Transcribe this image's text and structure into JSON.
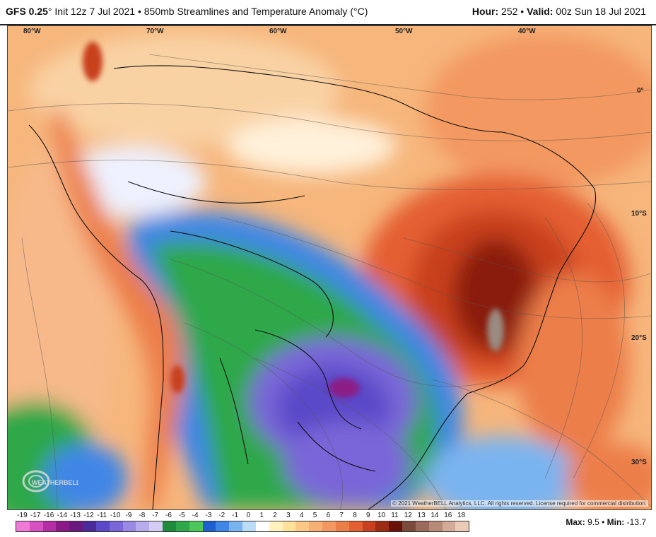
{
  "header": {
    "model": "GFS 0.25",
    "degree_mark": "°",
    "init": "Init 12z 7 Jul 2021",
    "bullet": "•",
    "product": "850mb Streamlines and Temperature Anomaly (°C)",
    "hour_label": "Hour:",
    "hour_value": "252",
    "valid_label": "Valid:",
    "valid_value": "00z Sun 18 Jul 2021"
  },
  "map": {
    "lon_labels": [
      "80°W",
      "70°W",
      "60°W",
      "50°W",
      "40°W"
    ],
    "lat_labels": [
      "0°",
      "10°S",
      "20°S",
      "30°S"
    ],
    "credit": "© 2021 WeatherBELL Analytics, LLC. All rights reserved. License required for commercial distribution.",
    "logo_text": "WEATHERBELL"
  },
  "colorbar": {
    "ticks": [
      "-19",
      "-17",
      "-16",
      "-14",
      "-13",
      "-12",
      "-11",
      "-10",
      "-9",
      "-8",
      "-7",
      "-6",
      "-5",
      "-4",
      "-3",
      "-2",
      "-1",
      "0",
      "1",
      "2",
      "3",
      "4",
      "5",
      "6",
      "7",
      "8",
      "9",
      "10",
      "11",
      "12",
      "13",
      "14",
      "16",
      "18"
    ],
    "colors": [
      "#f07ad8",
      "#d84fc2",
      "#b62ea6",
      "#8c1a86",
      "#6a1a7e",
      "#4a2a9a",
      "#5a48c8",
      "#7a66d8",
      "#9a8ae4",
      "#b8acec",
      "#d4ccf4",
      "#1e8a3c",
      "#2ea84a",
      "#4cc85a",
      "#1f5fd0",
      "#3f86e6",
      "#7ab4f0",
      "#bcdcf6",
      "#ffffff",
      "#fff2bc",
      "#ffe29a",
      "#fcc886",
      "#f7b074",
      "#f39860",
      "#ec7e48",
      "#e45f32",
      "#c8401f",
      "#9e2a14",
      "#6a1208",
      "#7a4a3a",
      "#9a6a5a",
      "#b88a78",
      "#d4aa98",
      "#eccab8"
    ]
  },
  "stats": {
    "max_label": "Max:",
    "max_value": "9.5",
    "min_label": "Min:",
    "min_value": "-13.7"
  }
}
